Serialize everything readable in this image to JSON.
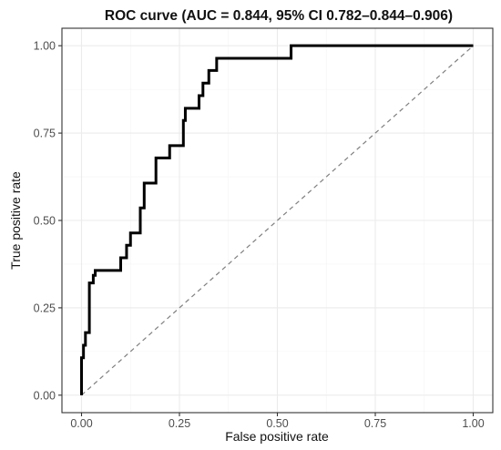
{
  "chart_data": {
    "type": "line",
    "title": "ROC curve (AUC = 0.844, 95% CI 0.782–0.844–0.906)",
    "xlabel": "False positive rate",
    "ylabel": "True positive rate",
    "xlim": [
      -0.05,
      1.05
    ],
    "ylim": [
      -0.05,
      1.05
    ],
    "x_ticks": [
      0,
      0.25,
      0.5,
      0.75,
      1
    ],
    "x_tick_labels": [
      "0.00",
      "0.25",
      "0.50",
      "0.75",
      "1.00"
    ],
    "y_ticks": [
      0,
      0.25,
      0.5,
      0.75,
      1
    ],
    "y_tick_labels": [
      "0.00",
      "0.25",
      "0.50",
      "0.75",
      "1.00"
    ],
    "grid": true,
    "reference_line": {
      "style": "dashed",
      "color": "#7f7f7f",
      "x": [
        0,
        1
      ],
      "y": [
        0,
        1
      ]
    },
    "series": [
      {
        "color": "#000000",
        "x": [
          0,
          0,
          0.005,
          0.005,
          0.01,
          0.01,
          0.02,
          0.02,
          0.03,
          0.03,
          0.035,
          0.035,
          0.1,
          0.1,
          0.115,
          0.115,
          0.125,
          0.125,
          0.15,
          0.15,
          0.16,
          0.16,
          0.175,
          0.175,
          0.19,
          0.19,
          0.225,
          0.225,
          0.26,
          0.26,
          0.265,
          0.265,
          0.3,
          0.3,
          0.31,
          0.31,
          0.325,
          0.325,
          0.345,
          0.345,
          0.535,
          0.535,
          1
        ],
        "y": [
          0,
          0.107,
          0.107,
          0.143,
          0.143,
          0.179,
          0.179,
          0.321,
          0.321,
          0.343,
          0.343,
          0.357,
          0.357,
          0.393,
          0.393,
          0.429,
          0.429,
          0.464,
          0.464,
          0.536,
          0.536,
          0.607,
          0.607,
          0.607,
          0.607,
          0.679,
          0.679,
          0.714,
          0.714,
          0.786,
          0.786,
          0.821,
          0.821,
          0.857,
          0.857,
          0.893,
          0.893,
          0.929,
          0.929,
          0.964,
          0.964,
          1,
          1
        ]
      }
    ]
  }
}
